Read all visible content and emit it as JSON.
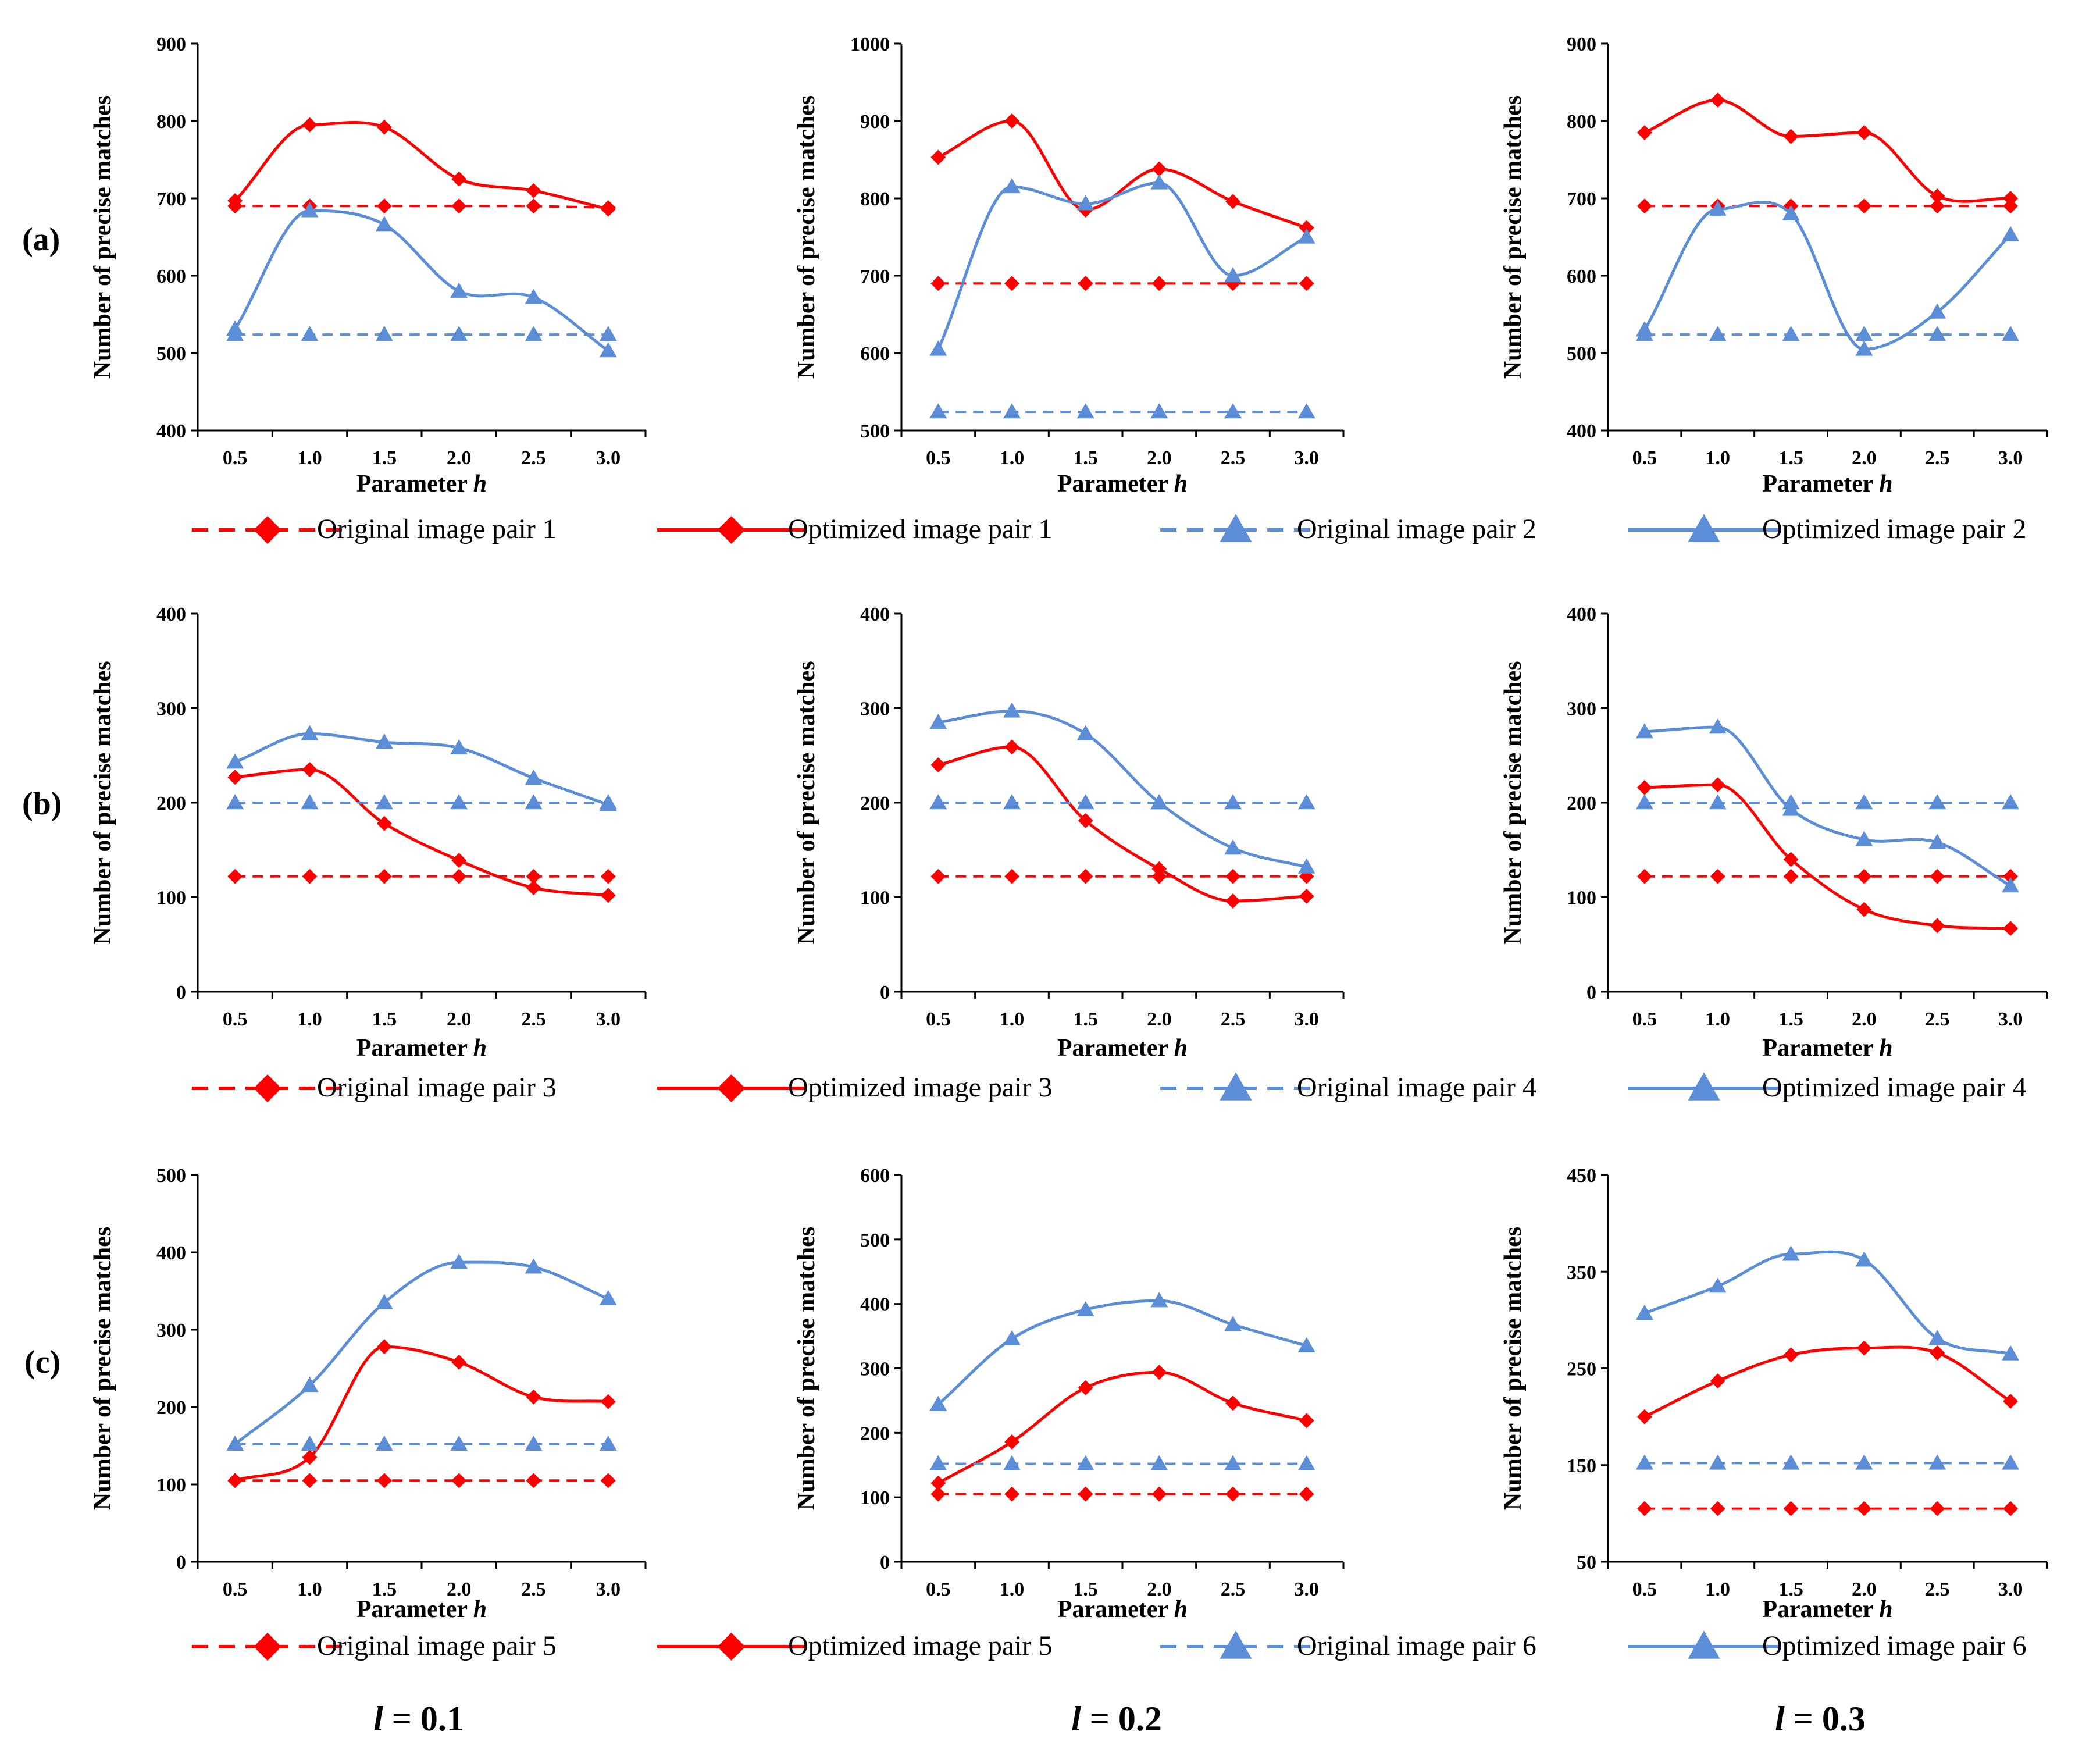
{
  "chart_data": [
    {
      "row": 0,
      "col": 0,
      "type": "line",
      "categories": [
        "0.5",
        "1.0",
        "1.5",
        "2.0",
        "2.5",
        "3.0"
      ],
      "ylim": [
        400,
        900
      ],
      "yticks": [
        400,
        500,
        600,
        700,
        800,
        900
      ],
      "xlabel": "Parameter ",
      "xlabel_italic": "h",
      "ylabel": "Number of precise matches",
      "series": [
        {
          "name": "Original image pair 1",
          "color": "#ff0000",
          "dash": true,
          "marker": "diamond",
          "values": [
            690,
            690,
            690,
            690,
            690,
            688
          ]
        },
        {
          "name": "Optimized image pair 1",
          "color": "#ff0000",
          "dash": false,
          "marker": "diamond",
          "values": [
            697,
            795,
            792,
            725,
            710,
            686
          ]
        },
        {
          "name": "Original image pair 2",
          "color": "#5b8ed6",
          "dash": true,
          "marker": "triangle",
          "values": [
            524,
            524,
            524,
            524,
            524,
            524
          ]
        },
        {
          "name": "Optimized image pair 2",
          "color": "#5b8ed6",
          "dash": false,
          "marker": "triangle",
          "values": [
            531,
            684,
            666,
            580,
            572,
            503
          ]
        }
      ]
    },
    {
      "row": 0,
      "col": 1,
      "type": "line",
      "categories": [
        "0.5",
        "1.0",
        "1.5",
        "2.0",
        "2.5",
        "3.0"
      ],
      "ylim": [
        500,
        1000
      ],
      "yticks": [
        500,
        600,
        700,
        800,
        900,
        1000
      ],
      "xlabel": "Parameter ",
      "xlabel_italic": "h",
      "ylabel": "Number of precise matches",
      "series": [
        {
          "name": "Original image pair 1",
          "color": "#ff0000",
          "dash": true,
          "marker": "diamond",
          "values": [
            690,
            690,
            690,
            690,
            690,
            690
          ]
        },
        {
          "name": "Optimized image pair 1",
          "color": "#ff0000",
          "dash": false,
          "marker": "diamond",
          "values": [
            853,
            900,
            785,
            838,
            796,
            762
          ]
        },
        {
          "name": "Original image pair 2",
          "color": "#5b8ed6",
          "dash": true,
          "marker": "triangle",
          "values": [
            524,
            524,
            524,
            524,
            524,
            524
          ]
        },
        {
          "name": "Optimized image pair 2",
          "color": "#5b8ed6",
          "dash": false,
          "marker": "triangle",
          "values": [
            605,
            815,
            793,
            820,
            700,
            750
          ]
        }
      ]
    },
    {
      "row": 0,
      "col": 2,
      "type": "line",
      "categories": [
        "0.5",
        "1.0",
        "1.5",
        "2.0",
        "2.5",
        "3.0"
      ],
      "ylim": [
        400,
        900
      ],
      "yticks": [
        400,
        500,
        600,
        700,
        800,
        900
      ],
      "xlabel": "Parameter ",
      "xlabel_italic": "h",
      "ylabel": "Number of precise matches",
      "series": [
        {
          "name": "Original image pair 1",
          "color": "#ff0000",
          "dash": true,
          "marker": "diamond",
          "values": [
            690,
            690,
            690,
            690,
            690,
            690
          ]
        },
        {
          "name": "Optimized image pair 1",
          "color": "#ff0000",
          "dash": false,
          "marker": "diamond",
          "values": [
            785,
            827,
            780,
            785,
            703,
            700
          ]
        },
        {
          "name": "Original image pair 2",
          "color": "#5b8ed6",
          "dash": true,
          "marker": "triangle",
          "values": [
            524,
            524,
            524,
            524,
            524,
            524
          ]
        },
        {
          "name": "Optimized image pair 2",
          "color": "#5b8ed6",
          "dash": false,
          "marker": "triangle",
          "values": [
            530,
            686,
            680,
            505,
            553,
            653
          ]
        }
      ]
    },
    {
      "row": 1,
      "col": 0,
      "type": "line",
      "categories": [
        "0.5",
        "1.0",
        "1.5",
        "2.0",
        "2.5",
        "3.0"
      ],
      "ylim": [
        0,
        400
      ],
      "yticks": [
        0,
        100,
        200,
        300,
        400
      ],
      "xlabel": "Parameter ",
      "xlabel_italic": "h",
      "ylabel": "Number of precise matches",
      "series": [
        {
          "name": "Original image pair 3",
          "color": "#ff0000",
          "dash": true,
          "marker": "diamond",
          "values": [
            122,
            122,
            122,
            122,
            122,
            122
          ]
        },
        {
          "name": "Optimized image pair 3",
          "color": "#ff0000",
          "dash": false,
          "marker": "diamond",
          "values": [
            227,
            235,
            178,
            139,
            110,
            102
          ]
        },
        {
          "name": "Original image pair 4",
          "color": "#5b8ed6",
          "dash": true,
          "marker": "triangle",
          "values": [
            200,
            200,
            200,
            200,
            200,
            200
          ]
        },
        {
          "name": "Optimized image pair 4",
          "color": "#5b8ed6",
          "dash": false,
          "marker": "triangle",
          "values": [
            243,
            273,
            264,
            258,
            226,
            198
          ]
        }
      ]
    },
    {
      "row": 1,
      "col": 1,
      "type": "line",
      "categories": [
        "0.5",
        "1.0",
        "1.5",
        "2.0",
        "2.5",
        "3.0"
      ],
      "ylim": [
        0,
        400
      ],
      "yticks": [
        0,
        100,
        200,
        300,
        400
      ],
      "xlabel": "Parameter ",
      "xlabel_italic": "h",
      "ylabel": "Number of precise matches",
      "series": [
        {
          "name": "Original image pair 3",
          "color": "#ff0000",
          "dash": true,
          "marker": "diamond",
          "values": [
            122,
            122,
            122,
            122,
            122,
            122
          ]
        },
        {
          "name": "Optimized image pair 3",
          "color": "#ff0000",
          "dash": false,
          "marker": "diamond",
          "values": [
            240,
            259,
            181,
            130,
            96,
            101
          ]
        },
        {
          "name": "Original image pair 4",
          "color": "#5b8ed6",
          "dash": true,
          "marker": "triangle",
          "values": [
            200,
            200,
            200,
            200,
            200,
            200
          ]
        },
        {
          "name": "Optimized image pair 4",
          "color": "#5b8ed6",
          "dash": false,
          "marker": "triangle",
          "values": [
            285,
            297,
            273,
            200,
            152,
            132
          ]
        }
      ]
    },
    {
      "row": 1,
      "col": 2,
      "type": "line",
      "categories": [
        "0.5",
        "1.0",
        "1.5",
        "2.0",
        "2.5",
        "3.0"
      ],
      "ylim": [
        0,
        400
      ],
      "yticks": [
        0,
        100,
        200,
        300,
        400
      ],
      "xlabel": "Parameter ",
      "xlabel_italic": "h",
      "ylabel": "Number of precise matches",
      "series": [
        {
          "name": "Original image pair 3",
          "color": "#ff0000",
          "dash": true,
          "marker": "diamond",
          "values": [
            122,
            122,
            122,
            122,
            122,
            122
          ]
        },
        {
          "name": "Optimized image pair 3",
          "color": "#ff0000",
          "dash": false,
          "marker": "diamond",
          "values": [
            216,
            219,
            140,
            87,
            70,
            67
          ]
        },
        {
          "name": "Original image pair 4",
          "color": "#5b8ed6",
          "dash": true,
          "marker": "triangle",
          "values": [
            200,
            200,
            200,
            200,
            200,
            200
          ]
        },
        {
          "name": "Optimized image pair 4",
          "color": "#5b8ed6",
          "dash": false,
          "marker": "triangle",
          "values": [
            275,
            280,
            193,
            161,
            158,
            112
          ]
        }
      ]
    },
    {
      "row": 2,
      "col": 0,
      "type": "line",
      "categories": [
        "0.5",
        "1.0",
        "1.5",
        "2.0",
        "2.5",
        "3.0"
      ],
      "ylim": [
        0,
        500
      ],
      "yticks": [
        0,
        100,
        200,
        300,
        400,
        500
      ],
      "xlabel": "Parameter ",
      "xlabel_italic": "h",
      "ylabel": "Number of precise matches",
      "series": [
        {
          "name": "Original image pair 5",
          "color": "#ff0000",
          "dash": true,
          "marker": "diamond",
          "values": [
            105,
            105,
            105,
            105,
            105,
            105
          ]
        },
        {
          "name": "Optimized image pair 5",
          "color": "#ff0000",
          "dash": false,
          "marker": "diamond",
          "values": [
            105,
            135,
            278,
            258,
            213,
            207
          ]
        },
        {
          "name": "Original image pair 6",
          "color": "#5b8ed6",
          "dash": true,
          "marker": "triangle",
          "values": [
            152,
            152,
            152,
            152,
            152,
            152
          ]
        },
        {
          "name": "Optimized image pair 6",
          "color": "#5b8ed6",
          "dash": false,
          "marker": "triangle",
          "values": [
            152,
            228,
            335,
            387,
            381,
            340
          ]
        }
      ]
    },
    {
      "row": 2,
      "col": 1,
      "type": "line",
      "categories": [
        "0.5",
        "1.0",
        "1.5",
        "2.0",
        "2.5",
        "3.0"
      ],
      "ylim": [
        0,
        600
      ],
      "yticks": [
        0,
        100,
        200,
        300,
        400,
        500,
        600
      ],
      "xlabel": "Parameter ",
      "xlabel_italic": "h",
      "ylabel": "Number of precise matches",
      "series": [
        {
          "name": "Original image pair 5",
          "color": "#ff0000",
          "dash": true,
          "marker": "diamond",
          "values": [
            105,
            105,
            105,
            105,
            105,
            105
          ]
        },
        {
          "name": "Optimized image pair 5",
          "color": "#ff0000",
          "dash": false,
          "marker": "diamond",
          "values": [
            122,
            186,
            270,
            294,
            246,
            219
          ]
        },
        {
          "name": "Original image pair 6",
          "color": "#5b8ed6",
          "dash": true,
          "marker": "triangle",
          "values": [
            152,
            152,
            152,
            152,
            152,
            152
          ]
        },
        {
          "name": "Optimized image pair 6",
          "color": "#5b8ed6",
          "dash": false,
          "marker": "triangle",
          "values": [
            244,
            346,
            391,
            405,
            368,
            335
          ]
        }
      ]
    },
    {
      "row": 2,
      "col": 2,
      "type": "line",
      "categories": [
        "0.5",
        "1.0",
        "1.5",
        "2.0",
        "2.5",
        "3.0"
      ],
      "ylim": [
        50,
        450
      ],
      "yticks": [
        50,
        150,
        250,
        350,
        450
      ],
      "xlabel": "Parameter ",
      "xlabel_italic": "h",
      "ylabel": "Number of precise matches",
      "series": [
        {
          "name": "Original image pair 5",
          "color": "#ff0000",
          "dash": true,
          "marker": "diamond",
          "values": [
            105,
            105,
            105,
            105,
            105,
            105
          ]
        },
        {
          "name": "Optimized image pair 5",
          "color": "#ff0000",
          "dash": false,
          "marker": "diamond",
          "values": [
            200,
            237,
            264,
            271,
            266,
            216
          ]
        },
        {
          "name": "Original image pair 6",
          "color": "#5b8ed6",
          "dash": true,
          "marker": "triangle",
          "values": [
            152,
            152,
            152,
            152,
            152,
            152
          ]
        },
        {
          "name": "Optimized image pair 6",
          "color": "#5b8ed6",
          "dash": false,
          "marker": "triangle",
          "values": [
            307,
            335,
            368,
            362,
            281,
            265
          ]
        }
      ]
    }
  ],
  "row_labels": [
    "(a)",
    "(b)",
    "(c)"
  ],
  "legends": [
    [
      "Original image pair 1",
      "Optimized image pair 1",
      "Original image pair 2",
      "Optimized image pair 2"
    ],
    [
      "Original image pair 3",
      "Optimized image pair 3",
      "Original image pair 4",
      "Optimized image pair 4"
    ],
    [
      "Original image pair 5",
      "Optimized image pair 5",
      "Original image pair 6",
      "Optimized image pair 6"
    ]
  ],
  "column_titles": [
    {
      "var": "l",
      "eq": " = 0.1"
    },
    {
      "var": "l",
      "eq": " = 0.2"
    },
    {
      "var": "l",
      "eq": " = 0.3"
    }
  ],
  "colors": {
    "red": "#ff0000",
    "blue": "#5b8ed6"
  }
}
